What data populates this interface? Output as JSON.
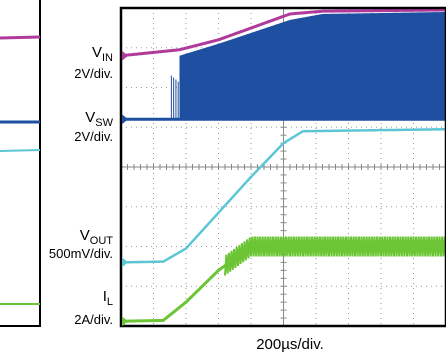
{
  "chart_data": {
    "type": "line",
    "title": "",
    "xlabel": "200µs/div.",
    "grid": true,
    "x_divisions": 10,
    "y_divisions": 8,
    "series": [
      {
        "name": "VIN",
        "name_main": "V",
        "name_sub": "IN",
        "scale": "2V/div.",
        "color": "#b03a9a",
        "x": [
          0,
          0.25,
          1.8,
          3.0,
          5.2,
          6.2,
          10
        ],
        "y": [
          6.8,
          6.82,
          6.95,
          7.2,
          7.85,
          7.92,
          7.95
        ]
      },
      {
        "name": "VSW",
        "name_main": "V",
        "name_sub": "SW",
        "scale": "2V/div.",
        "color": "#1f4fa0",
        "baseline_div": 5.2,
        "switching_start_div": 1.8,
        "x": [
          0,
          1.8,
          3.0,
          5.2,
          6.2,
          10
        ],
        "y_upper": [
          5.2,
          6.8,
          7.1,
          7.7,
          7.85,
          7.9
        ]
      },
      {
        "name": "VOUT",
        "name_main": "V",
        "name_sub": "OUT",
        "scale": "500mV/div.",
        "color": "#5cc6d6",
        "x": [
          0,
          1.3,
          2.0,
          3.0,
          4.0,
          5.0,
          5.6,
          10
        ],
        "y": [
          1.6,
          1.62,
          1.95,
          2.85,
          3.75,
          4.6,
          4.9,
          4.95
        ]
      },
      {
        "name": "IL",
        "name_main": "I",
        "name_sub": "L",
        "scale": "2A/div.",
        "color": "#6cc534",
        "x": [
          0,
          1.3,
          2.0,
          3.0,
          4.0,
          10
        ],
        "y": [
          0.12,
          0.14,
          0.6,
          1.4,
          2.0,
          2.0
        ],
        "ripple_start_div": 3.2
      }
    ]
  }
}
